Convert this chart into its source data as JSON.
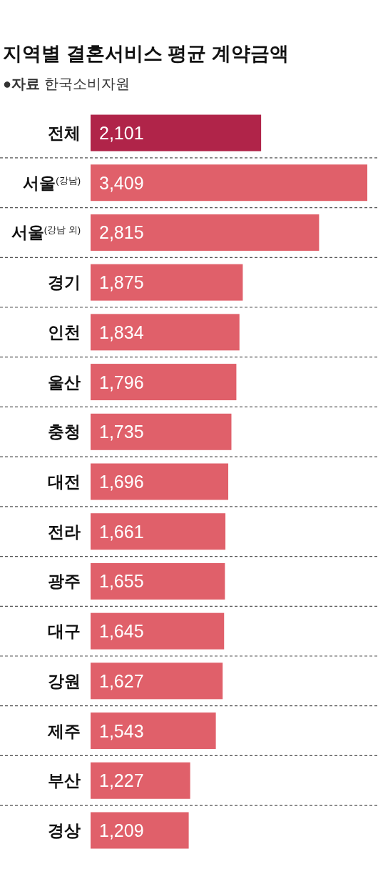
{
  "chart_data": {
    "type": "bar",
    "orientation": "horizontal",
    "title": "지역별 결혼서비스 평균 계약금액",
    "annotations": [
      "●자료 한국소비자원"
    ],
    "categories": [
      "전체",
      "서울$^{(강남)}$",
      "서울$^{(강남 외)}$",
      "경기",
      "인천",
      "울산",
      "충청",
      "대전",
      "전라",
      "광주",
      "대구",
      "강원",
      "제주",
      "부산",
      "경상"
    ],
    "values": [
      2101,
      3409,
      2815,
      1875,
      1834,
      1796,
      1735,
      1696,
      1661,
      1655,
      1645,
      1627,
      1543,
      1227,
      1209
    ],
    "colors": [
      "#b02449",
      "#e0606a",
      "#e0606a",
      "#e0606a",
      "#e0606a",
      "#e0606a",
      "#e0606a",
      "#e0606a",
      "#e0606a",
      "#e0606a",
      "#e0606a",
      "#e0606a",
      "#e0606a",
      "#e0606a",
      "#e0606a"
    ],
    "value_labels": [
      "2,101",
      "3,409",
      "2,815",
      "1,875",
      "1,834",
      "1,796",
      "1,735",
      "1,696",
      "1,661",
      "1,655",
      "1,645",
      "1,627",
      "1,543",
      "1,227",
      "1,209"
    ],
    "grid": true
  }
}
